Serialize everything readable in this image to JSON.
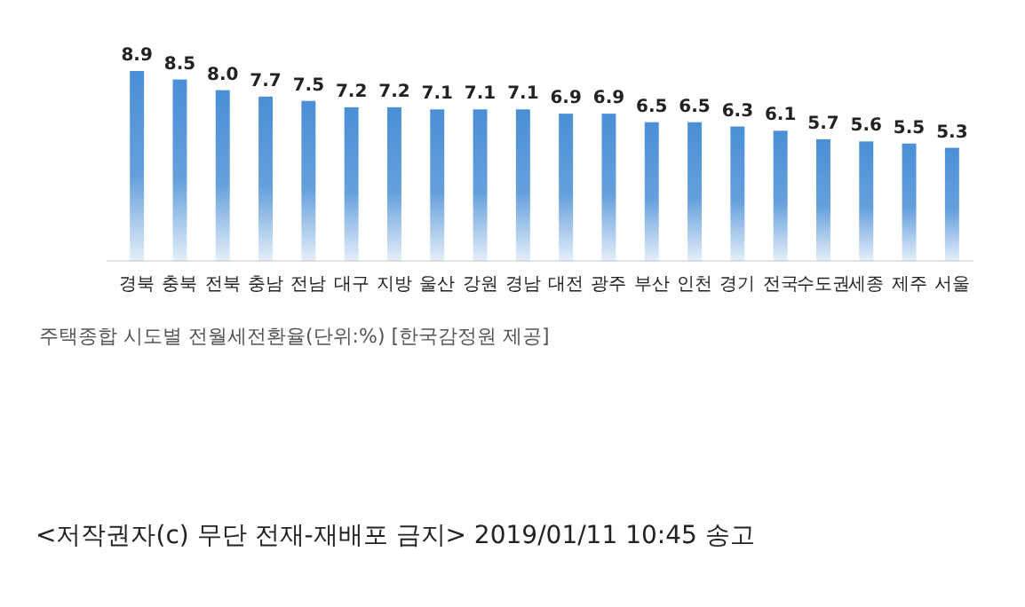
{
  "chart_data": {
    "type": "bar",
    "categories": [
      "경북",
      "충북",
      "전북",
      "충남",
      "전남",
      "대구",
      "지방",
      "울산",
      "강원",
      "경남",
      "대전",
      "광주",
      "부산",
      "인천",
      "경기",
      "전국",
      "수도권",
      "세종",
      "제주",
      "서울"
    ],
    "values": [
      8.9,
      8.5,
      8.0,
      7.7,
      7.5,
      7.2,
      7.2,
      7.1,
      7.1,
      7.1,
      6.9,
      6.9,
      6.5,
      6.5,
      6.3,
      6.1,
      5.7,
      5.6,
      5.5,
      5.3
    ],
    "value_labels": [
      "8.9",
      "8.5",
      "8.0",
      "7.7",
      "7.5",
      "7.2",
      "7.2",
      "7.1",
      "7.1",
      "7.1",
      "6.9",
      "6.9",
      "6.5",
      "6.5",
      "6.3",
      "6.1",
      "5.7",
      "5.6",
      "5.5",
      "5.3"
    ],
    "color": "#4a8fd6",
    "annotations": [
      "주택종합 시도별 전월세전환율(단위:%) [한국감정원 제공]",
      "<저작권자(c) 무단 전재-재배포 금지> 2019/01/11 10:45 송고"
    ]
  }
}
